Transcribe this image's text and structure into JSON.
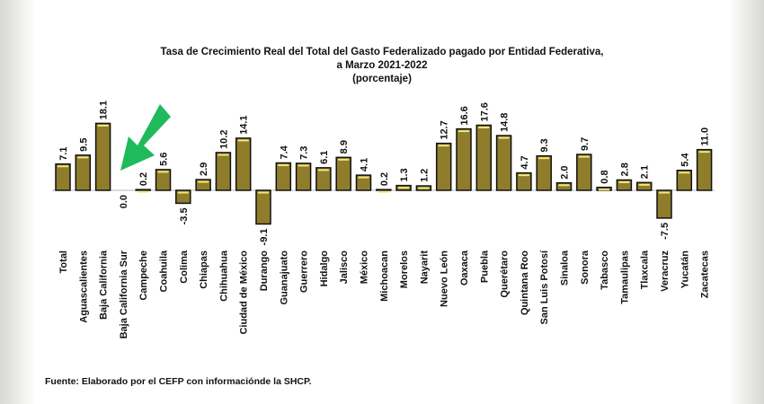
{
  "chart_data": {
    "type": "bar",
    "title": "Tasa de Crecimiento Real del Total del Gasto Federalizado pagado por Entidad Federativa,",
    "subtitle": "a Marzo 2021-2022",
    "unit_note": "(porcentaje)",
    "source": "Fuente: Elaborado por el CEFP con informaciónde la SHCP.",
    "categories": [
      "Total",
      "Aguascalientes",
      "Baja California",
      "Baja California Sur",
      "Campeche",
      "Coahuila",
      "Colima",
      "Chiapas",
      "Chihuahua",
      "Ciudad de México",
      "Durango",
      "Guanajuato",
      "Guerrero",
      "Hidalgo",
      "Jalisco",
      "México",
      "Michoacan",
      "Morelos",
      "Nayarit",
      "Nuevo León",
      "Oaxaca",
      "Puebla",
      "Querétaro",
      "Quintana Roo",
      "San Luis Potosí",
      "Sinaloa",
      "Sonora",
      "Tabasco",
      "Tamaulipas",
      "Tlaxcala",
      "Veracruz",
      "Yucatán",
      "Zacatecas"
    ],
    "values": [
      7.1,
      9.5,
      18.1,
      0.0,
      0.2,
      5.6,
      -3.5,
      2.9,
      10.2,
      14.1,
      -9.1,
      7.4,
      7.3,
      6.1,
      8.9,
      4.1,
      0.2,
      1.3,
      1.2,
      12.7,
      16.6,
      17.6,
      14.8,
      4.7,
      9.3,
      2.0,
      9.7,
      0.8,
      2.8,
      2.1,
      -7.5,
      5.4,
      11.0
    ],
    "value_labels": [
      "7.1",
      "9.5",
      "18.1",
      "0.0",
      "0.2",
      "5.6",
      "-3.5",
      "2.9",
      "10.2",
      "14.1",
      "-9.1",
      "7.4",
      "7.3",
      "6.1",
      "8.9",
      "4.1",
      "0.2",
      "1.3",
      "1.2",
      "12.7",
      "16.6",
      "17.6",
      "14.8",
      "4.7",
      "9.3",
      "2.0",
      "9.7",
      "0.8",
      "2.8",
      "2.1",
      "-7.5",
      "5.4",
      "11.0"
    ],
    "grid": false,
    "legend": "none",
    "colors": {
      "bar": "#8f7d2c",
      "bar_highlight": "#f2e77a",
      "bar_edge": "#111111",
      "annotation_arrow": "#1db954"
    },
    "annotation": {
      "type": "arrow",
      "points_to": "Baja California Sur"
    }
  }
}
